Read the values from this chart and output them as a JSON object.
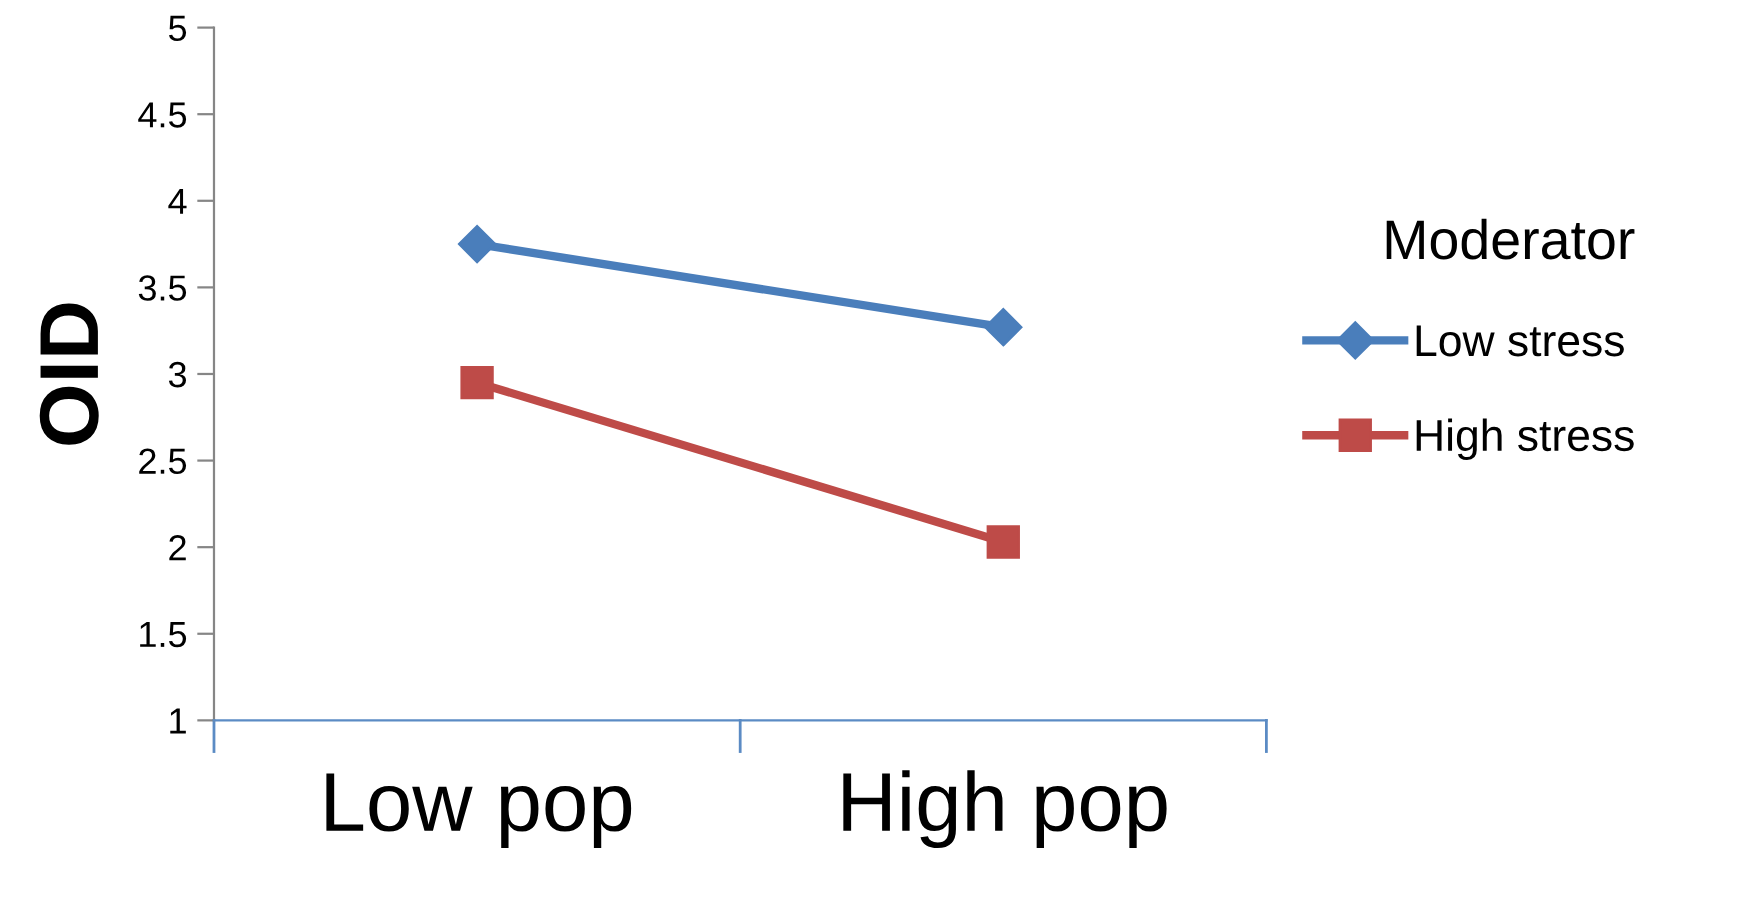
{
  "chart_data": {
    "type": "line",
    "ylabel": "OID",
    "categories": [
      "Low pop",
      "High pop"
    ],
    "series": [
      {
        "name": "Low stress",
        "color": "#4a7ebb",
        "values": [
          3.75,
          3.27
        ],
        "marker": "diamond"
      },
      {
        "name": "High stress",
        "color": "#be4b48",
        "values": [
          2.95,
          2.03
        ],
        "marker": "square"
      }
    ],
    "ylim": [
      1,
      5
    ],
    "yticks": [
      1,
      1.5,
      2,
      2.5,
      3,
      3.5,
      4,
      4.5,
      5
    ],
    "grid": false,
    "legend": "right",
    "legend_title": "Moderator",
    "line_style": "solid"
  }
}
